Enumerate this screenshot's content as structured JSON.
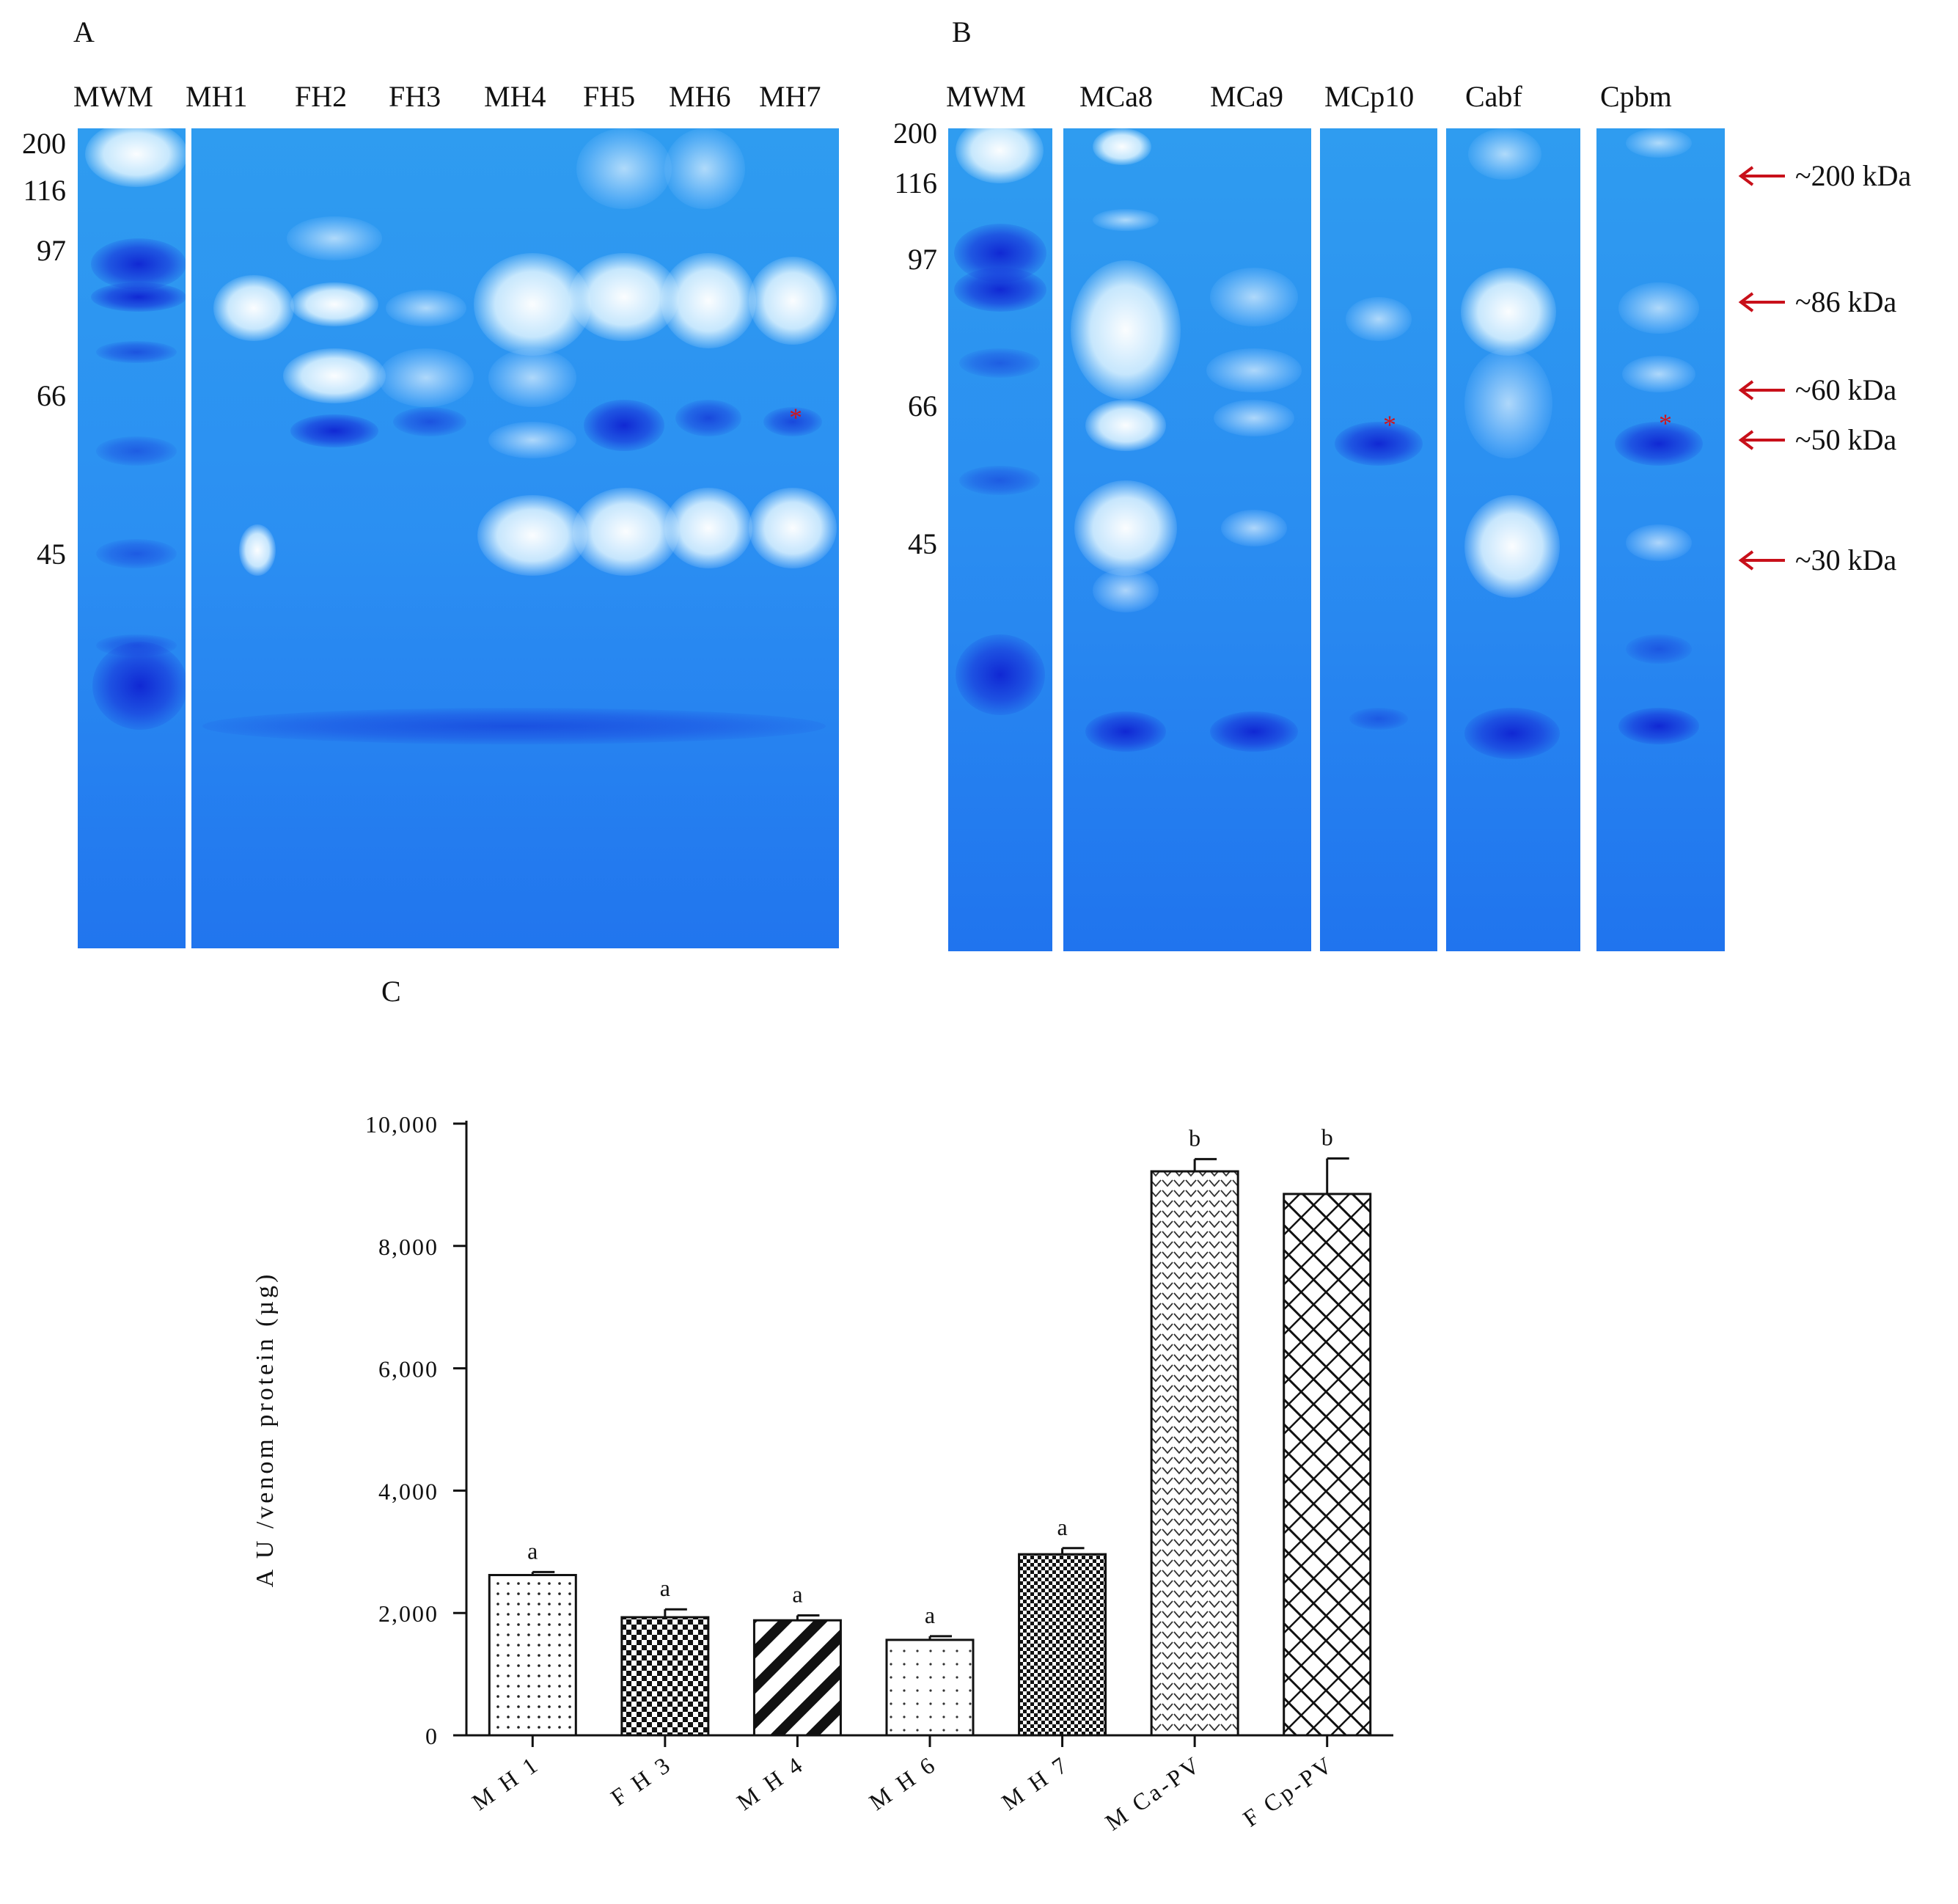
{
  "panel_a": {
    "letter": "A",
    "lanes": [
      "MWM",
      "MH1",
      "FH2",
      "FH3",
      "MH4",
      "FH5",
      "MH6",
      "MH7"
    ],
    "mw_markers": [
      "200",
      "116",
      "97",
      "66",
      "45"
    ],
    "asterisk": "*"
  },
  "panel_b": {
    "letter": "B",
    "lanes": [
      "MWM",
      "MCa8",
      "MCa9",
      "MCp10",
      "Cabf",
      "Cpbm"
    ],
    "mw_markers": [
      "200",
      "116",
      "97",
      "66",
      "45"
    ],
    "asterisk": "*",
    "arrow_labels": [
      "~200 kDa",
      "~86 kDa",
      "~60 kDa",
      "~50 kDa",
      "~30 kDa"
    ],
    "arrow_color": "#c8101a"
  },
  "panel_c": {
    "letter": "C"
  },
  "chart_data": {
    "type": "bar",
    "title": "",
    "xlabel": "",
    "ylabel": "A U /venom protein (µg)",
    "ylim": [
      0,
      10000
    ],
    "yticks": [
      0,
      2000,
      4000,
      6000,
      8000,
      10000
    ],
    "ytick_labels": [
      "0",
      "2,000",
      "4,000",
      "6,000",
      "8,000",
      "10,000"
    ],
    "categories": [
      "M H 1",
      "F H 3",
      "M H 4",
      "M H 6",
      "M H 7",
      "M Ca-PV",
      "F Cp-PV"
    ],
    "values": [
      2620,
      1930,
      1880,
      1560,
      2960,
      9220,
      8850
    ],
    "errors": [
      50,
      130,
      80,
      60,
      100,
      200,
      580
    ],
    "significance": [
      "a",
      "a",
      "a",
      "a",
      "a",
      "b",
      "b"
    ],
    "patterns": [
      "dots",
      "checker",
      "diag-wide",
      "dots-sparse",
      "checker-fine",
      "chevron",
      "brick"
    ]
  }
}
